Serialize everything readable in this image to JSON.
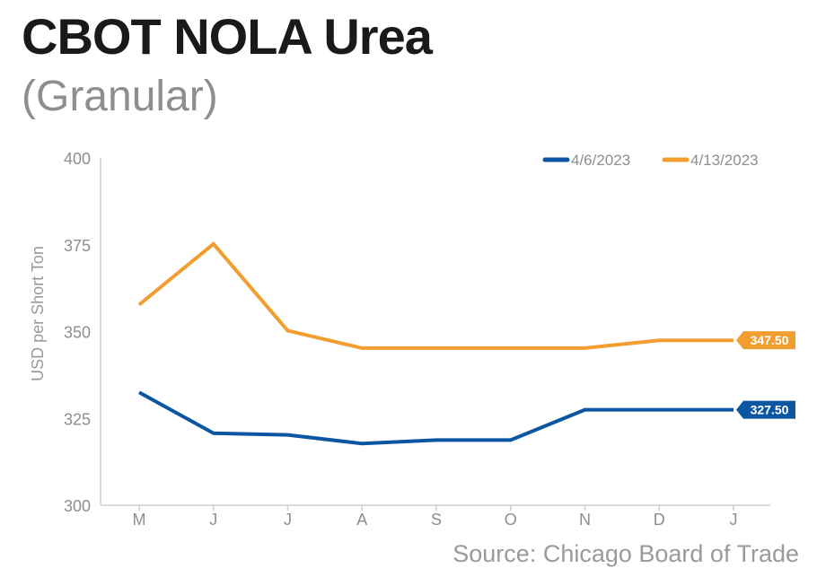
{
  "title": "CBOT NOLA Urea",
  "subtitle": "(Granular)",
  "source": "Source: Chicago Board of Trade",
  "chart_data": {
    "type": "line",
    "categories": [
      "M",
      "J",
      "J",
      "A",
      "S",
      "O",
      "N",
      "D",
      "J"
    ],
    "series": [
      {
        "name": "4/6/2023",
        "color": "#0b56a0",
        "values": [
          332.5,
          320.75,
          320.25,
          317.75,
          318.75,
          318.75,
          327.5,
          327.5,
          327.5
        ],
        "end_label": "327.50"
      },
      {
        "name": "4/13/2023",
        "color": "#f29d2f",
        "values": [
          357.75,
          375.25,
          350.25,
          345.25,
          345.25,
          345.25,
          345.25,
          347.5,
          347.5
        ],
        "end_label": "347.50"
      }
    ],
    "ylabel": "USD per Short Ton",
    "ylim": [
      300,
      400
    ],
    "yticks": [
      300,
      325,
      350,
      375,
      400
    ],
    "grid": false,
    "legend_position": "top-right"
  }
}
